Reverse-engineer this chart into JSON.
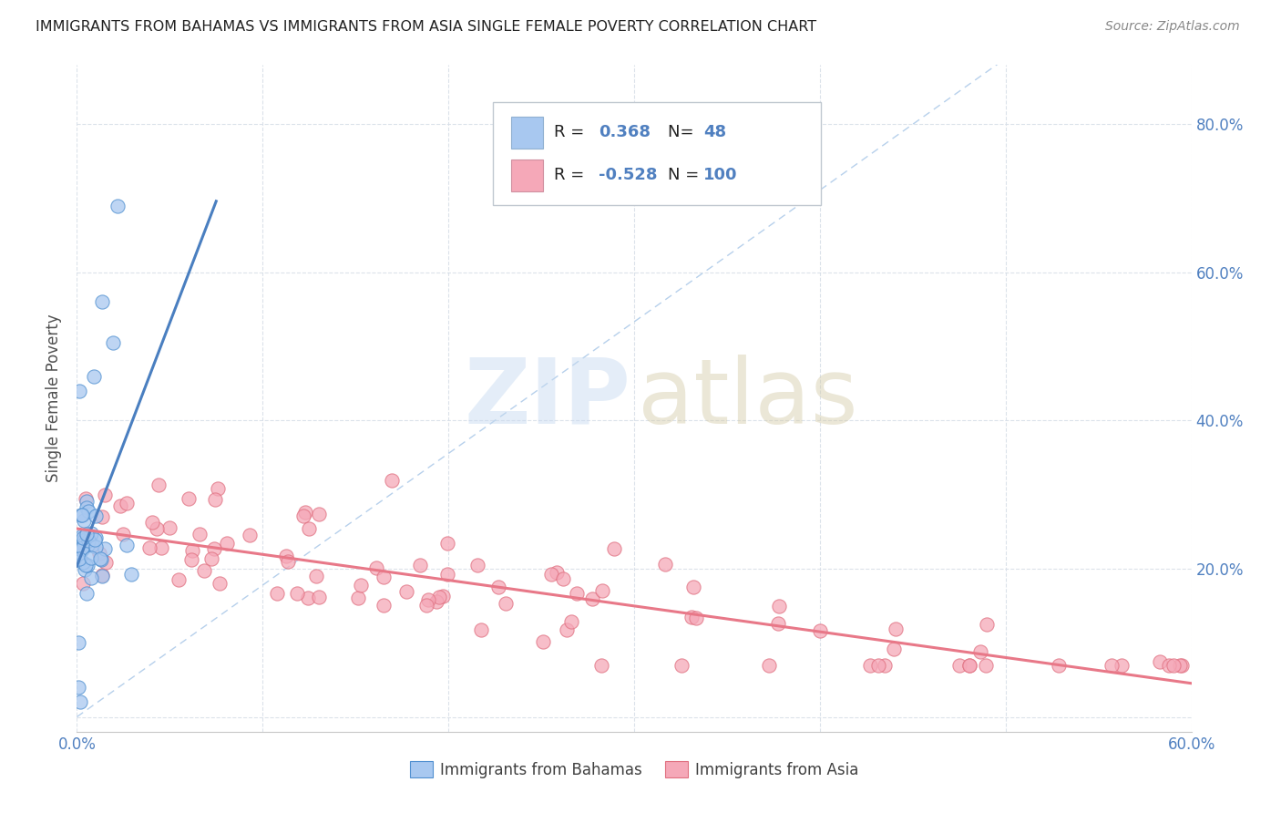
{
  "title": "IMMIGRANTS FROM BAHAMAS VS IMMIGRANTS FROM ASIA SINGLE FEMALE POVERTY CORRELATION CHART",
  "source": "Source: ZipAtlas.com",
  "ylabel": "Single Female Poverty",
  "xlim": [
    0.0,
    0.6
  ],
  "ylim": [
    -0.02,
    0.88
  ],
  "color_bahamas": "#a8c8f0",
  "color_asia": "#f5a8b8",
  "color_bahamas_edge": "#5090d0",
  "color_asia_edge": "#e07080",
  "color_bahamas_line": "#4a7fc0",
  "color_asia_line": "#e87888",
  "color_dashed": "#aac8e8",
  "legend_label_bahamas": "Immigrants from Bahamas",
  "legend_label_asia": "Immigrants from Asia",
  "background_color": "#ffffff",
  "grid_color": "#d8dfe8",
  "title_color": "#222222",
  "axis_color": "#5080c0",
  "r1": "0.368",
  "n1": "48",
  "r2": "-0.528",
  "n2": "100"
}
